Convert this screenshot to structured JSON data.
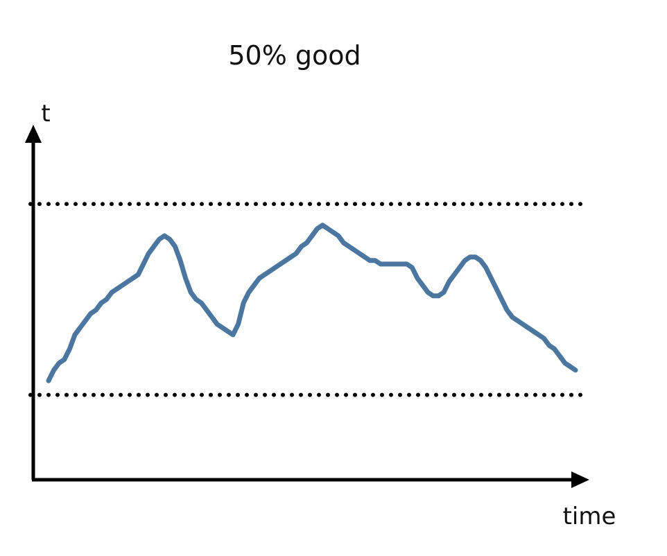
{
  "chart_data": {
    "type": "line",
    "title": "50% good",
    "xlabel": "time",
    "ylabel": "t",
    "xlim": [
      0,
      100
    ],
    "ylim": [
      0,
      100
    ],
    "grid": false,
    "legend": "none",
    "reference_lines": [
      {
        "y": 78,
        "style": "dotted"
      },
      {
        "y": 24,
        "style": "dotted"
      }
    ],
    "series": [
      {
        "color": "#4a76a0",
        "x": [
          0,
          1,
          2,
          3,
          4,
          5,
          6,
          7,
          8,
          9,
          10,
          11,
          12,
          13,
          14,
          15,
          16,
          17,
          18,
          19,
          20,
          21,
          22,
          23,
          24,
          25,
          26,
          27,
          28,
          29,
          30,
          31,
          32,
          33,
          34,
          35,
          36,
          37,
          38,
          39,
          40,
          41,
          42,
          43,
          44,
          45,
          46,
          47,
          48,
          49,
          50,
          51,
          52,
          53,
          54,
          55,
          56,
          57,
          58,
          59,
          60,
          61,
          62,
          63,
          64,
          65,
          66,
          67,
          68,
          69,
          70,
          71,
          72,
          73,
          74,
          75,
          76,
          77,
          78,
          79,
          80,
          81,
          82,
          83,
          84,
          85,
          86,
          87,
          88,
          89,
          90,
          91,
          92,
          93,
          94,
          95,
          96,
          97,
          98,
          99,
          100
        ],
        "values": [
          28,
          31,
          33,
          34,
          37,
          41,
          43,
          45,
          47,
          48,
          50,
          51,
          53,
          54,
          55,
          56,
          57,
          58,
          61,
          64,
          66,
          68,
          69,
          68,
          66,
          62,
          57,
          53,
          51,
          50,
          48,
          46,
          44,
          43,
          42,
          41,
          44,
          50,
          53,
          55,
          57,
          58,
          59,
          60,
          61,
          62,
          63,
          64,
          66,
          67,
          69,
          71,
          72,
          71,
          70,
          69,
          67,
          66,
          65,
          64,
          63,
          62,
          62,
          61,
          61,
          61,
          61,
          61,
          61,
          60,
          57,
          55,
          53,
          52,
          52,
          53,
          56,
          58,
          60,
          62,
          63,
          63,
          62,
          60,
          57,
          54,
          51,
          48,
          46,
          45,
          44,
          43,
          42,
          41,
          40,
          38,
          37,
          35,
          33,
          32,
          31
        ]
      }
    ]
  }
}
